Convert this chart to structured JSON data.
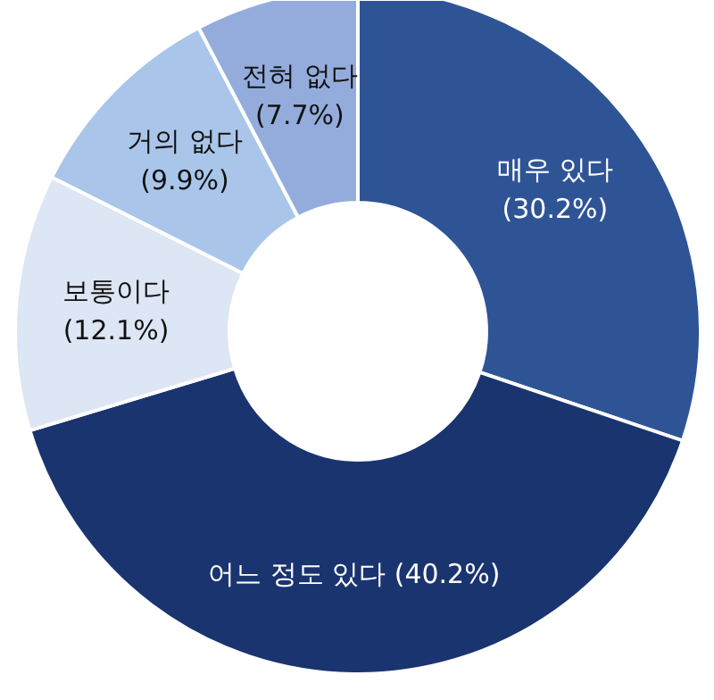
{
  "chart_data": {
    "type": "donut",
    "categories": [
      "매우 있다",
      "어느 정도 있다",
      "보통이다",
      "거의 없다",
      "전혀 없다"
    ],
    "values": [
      30.2,
      40.2,
      12.1,
      9.9,
      7.7
    ],
    "value_labels": [
      "(30.2%)",
      "(40.2%)",
      "(12.1%)",
      "(9.9%)",
      "(7.7%)"
    ],
    "colors": [
      "#2f5496",
      "#1a3470",
      "#dce6f4",
      "#a9c6ea",
      "#94acdc"
    ]
  }
}
